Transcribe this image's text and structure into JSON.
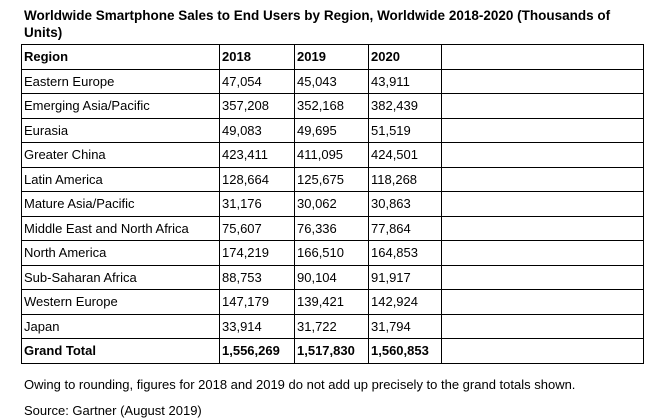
{
  "chart_data": {
    "type": "table",
    "title": "Worldwide Smartphone Sales to End Users by Region, Worldwide 2018-2020 (Thousands of Units)",
    "columns": [
      "Region",
      "2018",
      "2019",
      "2020"
    ],
    "rows": [
      [
        "Eastern Europe",
        "47,054",
        "45,043",
        "43,911"
      ],
      [
        "Emerging Asia/Pacific",
        "357,208",
        "352,168",
        "382,439"
      ],
      [
        "Eurasia",
        "49,083",
        "49,695",
        "51,519"
      ],
      [
        "Greater China",
        "423,411",
        "411,095",
        "424,501"
      ],
      [
        "Latin America",
        "128,664",
        "125,675",
        "118,268"
      ],
      [
        "Mature Asia/Pacific",
        "31,176",
        "30,062",
        "30,863"
      ],
      [
        "Middle East and North Africa",
        "75,607",
        "76,336",
        "77,864"
      ],
      [
        "North America",
        "174,219",
        "166,510",
        "164,853"
      ],
      [
        "Sub-Saharan Africa",
        "88,753",
        "90,104",
        "91,917"
      ],
      [
        "Western Europe",
        "147,179",
        "139,421",
        "142,924"
      ],
      [
        "Japan",
        "33,914",
        "31,722",
        "31,794"
      ]
    ],
    "total_row": [
      "Grand Total",
      "1,556,269",
      "1,517,830",
      "1,560,853"
    ],
    "note": "Owing to rounding, figures for 2018 and 2019 do not add up precisely to the grand totals shown.",
    "source": "Source: Gartner (August 2019)"
  }
}
